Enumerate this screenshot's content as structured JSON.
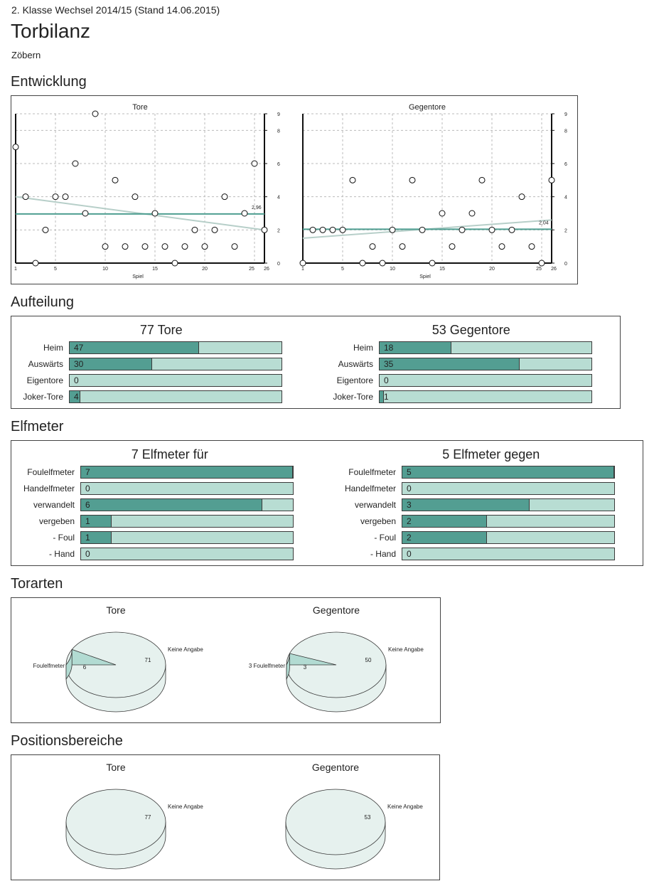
{
  "header": {
    "subtitle": "2. Klasse Wechsel 2014/15 (Stand 14.06.2015)",
    "title": "Torbilanz",
    "team": "Zöbern"
  },
  "sections": {
    "entwicklung": "Entwicklung",
    "aufteilung": "Aufteilung",
    "elfmeter": "Elfmeter",
    "torarten": "Torarten",
    "positionsbereiche": "Positionsbereiche"
  },
  "colors": {
    "bar_fill": "#539e92",
    "bar_track": "#b8ddd3",
    "trend": "#b7cfc9",
    "avg": "#4e9e91",
    "pie": "#e6f1ee",
    "pie_slice": "#b2dbd2"
  },
  "chart_data": [
    {
      "type": "scatter",
      "title": "Tore",
      "xlabel": "Spiel",
      "x_ticks": [
        1,
        5,
        10,
        15,
        20,
        25,
        26
      ],
      "y_ticks": [
        0,
        2,
        4,
        6,
        8,
        9
      ],
      "xlim": [
        1,
        26
      ],
      "ylim": [
        0,
        9
      ],
      "x": [
        1,
        2,
        3,
        4,
        5,
        6,
        7,
        8,
        9,
        10,
        11,
        12,
        13,
        14,
        15,
        16,
        17,
        18,
        19,
        20,
        21,
        22,
        23,
        24,
        25,
        26
      ],
      "y": [
        7,
        4,
        0,
        2,
        4,
        4,
        6,
        3,
        9,
        1,
        5,
        1,
        4,
        1,
        3,
        1,
        0,
        1,
        2,
        1,
        2,
        4,
        1,
        3,
        6,
        2
      ],
      "average": 2.96,
      "average_label": "2,96",
      "trend": [
        4.0,
        2.0
      ]
    },
    {
      "type": "scatter",
      "title": "Gegentore",
      "xlabel": "Spiel",
      "x_ticks": [
        1,
        5,
        10,
        15,
        20,
        25,
        26
      ],
      "y_ticks": [
        0,
        2,
        4,
        6,
        8,
        9
      ],
      "xlim": [
        1,
        26
      ],
      "ylim": [
        0,
        9
      ],
      "x": [
        1,
        2,
        3,
        4,
        5,
        6,
        7,
        8,
        9,
        10,
        11,
        12,
        13,
        14,
        15,
        16,
        17,
        18,
        19,
        20,
        21,
        22,
        23,
        24,
        25,
        26
      ],
      "y": [
        0,
        2,
        2,
        2,
        2,
        5,
        0,
        1,
        0,
        2,
        1,
        5,
        2,
        0,
        3,
        1,
        2,
        3,
        5,
        2,
        1,
        2,
        4,
        1,
        0,
        5
      ],
      "average": 2.04,
      "average_label": "2,04",
      "trend": [
        1.5,
        2.6
      ]
    },
    {
      "type": "bar",
      "title": "77 Tore",
      "max": 77,
      "categories": [
        "Heim",
        "Auswärts",
        "Eigentore",
        "Joker-Tore"
      ],
      "values": [
        47,
        30,
        0,
        4
      ]
    },
    {
      "type": "bar",
      "title": "53 Gegentore",
      "max": 53,
      "categories": [
        "Heim",
        "Auswärts",
        "Eigentore",
        "Joker-Tore"
      ],
      "values": [
        18,
        35,
        0,
        1
      ]
    },
    {
      "type": "bar",
      "title": "7 Elfmeter für",
      "max": 7,
      "categories": [
        "Foulelfmeter",
        "Handelfmeter",
        "verwandelt",
        "vergeben",
        "- Foul",
        "- Hand"
      ],
      "values": [
        7,
        0,
        6,
        1,
        1,
        0
      ]
    },
    {
      "type": "bar",
      "title": "5 Elfmeter gegen",
      "max": 5,
      "categories": [
        "Foulelfmeter",
        "Handelfmeter",
        "verwandelt",
        "vergeben",
        "- Foul",
        "- Hand"
      ],
      "values": [
        5,
        0,
        3,
        2,
        2,
        0
      ]
    },
    {
      "type": "pie",
      "title": "Tore",
      "labels": [
        "Keine Angabe",
        "Foulelfmeter"
      ],
      "values": [
        71,
        6
      ]
    },
    {
      "type": "pie",
      "title": "Gegentore",
      "labels": [
        "Keine Angabe",
        "3 Foulelfmeter"
      ],
      "values": [
        50,
        3
      ]
    },
    {
      "type": "pie",
      "title": "Tore",
      "labels": [
        "Keine Angabe"
      ],
      "values": [
        77
      ]
    },
    {
      "type": "pie",
      "title": "Gegentore",
      "labels": [
        "Keine Angabe"
      ],
      "values": [
        53
      ]
    }
  ]
}
